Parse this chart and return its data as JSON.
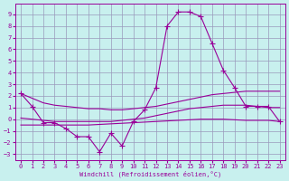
{
  "xlabel": "Windchill (Refroidissement éolien,°C)",
  "bg_color": "#c8f0ee",
  "line_color": "#990099",
  "grid_color": "#9999bb",
  "xlim": [
    -0.5,
    23.5
  ],
  "ylim": [
    -3.5,
    9.9
  ],
  "yticks": [
    -3,
    -2,
    -1,
    0,
    1,
    2,
    3,
    4,
    5,
    6,
    7,
    8,
    9
  ],
  "xticks": [
    0,
    1,
    2,
    3,
    4,
    5,
    6,
    7,
    8,
    9,
    10,
    11,
    12,
    13,
    14,
    15,
    16,
    17,
    18,
    19,
    20,
    21,
    22,
    23
  ],
  "line1_x": [
    0,
    1,
    2,
    3,
    4,
    5,
    6,
    7,
    8,
    9,
    10,
    11,
    12,
    13,
    14,
    15,
    16,
    17,
    18,
    19,
    20,
    21,
    22,
    23
  ],
  "line1_y": [
    2.2,
    1.1,
    -0.3,
    -0.3,
    -0.8,
    -1.5,
    -1.5,
    -2.8,
    -1.2,
    -2.3,
    -0.2,
    0.8,
    2.7,
    8.0,
    9.2,
    9.2,
    8.8,
    6.5,
    4.2,
    2.7,
    1.1,
    1.1,
    1.1,
    -0.2
  ],
  "line2_x": [
    0,
    1,
    2,
    3,
    4,
    5,
    6,
    7,
    8,
    9,
    10,
    11,
    12,
    13,
    14,
    15,
    16,
    17,
    18,
    19,
    20,
    21,
    22,
    23
  ],
  "line2_y": [
    2.2,
    1.8,
    1.4,
    1.2,
    1.1,
    1.0,
    0.9,
    0.9,
    0.8,
    0.8,
    0.9,
    1.0,
    1.1,
    1.3,
    1.5,
    1.7,
    1.9,
    2.1,
    2.2,
    2.3,
    2.4,
    2.4,
    2.4,
    2.4
  ],
  "line3_x": [
    0,
    1,
    2,
    3,
    4,
    5,
    6,
    7,
    8,
    9,
    10,
    11,
    12,
    13,
    14,
    15,
    16,
    17,
    18,
    19,
    20,
    21,
    22,
    23
  ],
  "line3_y": [
    0.1,
    0.0,
    -0.1,
    -0.2,
    -0.2,
    -0.2,
    -0.2,
    -0.2,
    -0.2,
    -0.1,
    0.0,
    0.1,
    0.3,
    0.5,
    0.7,
    0.9,
    1.0,
    1.1,
    1.2,
    1.2,
    1.2,
    1.1,
    1.0,
    1.0
  ],
  "line4_x": [
    0,
    1,
    2,
    3,
    4,
    5,
    6,
    7,
    8,
    9,
    10,
    11,
    12,
    13,
    14,
    15,
    16,
    17,
    18,
    19,
    20,
    21,
    22,
    23
  ],
  "line4_y": [
    -0.5,
    -0.5,
    -0.5,
    -0.5,
    -0.5,
    -0.5,
    -0.5,
    -0.45,
    -0.4,
    -0.35,
    -0.3,
    -0.25,
    -0.2,
    -0.15,
    -0.1,
    -0.05,
    0.0,
    0.0,
    0.0,
    -0.05,
    -0.1,
    -0.1,
    -0.1,
    -0.2
  ],
  "lw": 0.8,
  "ms": 4,
  "fontsize_ticks": 5,
  "fontsize_label": 5
}
